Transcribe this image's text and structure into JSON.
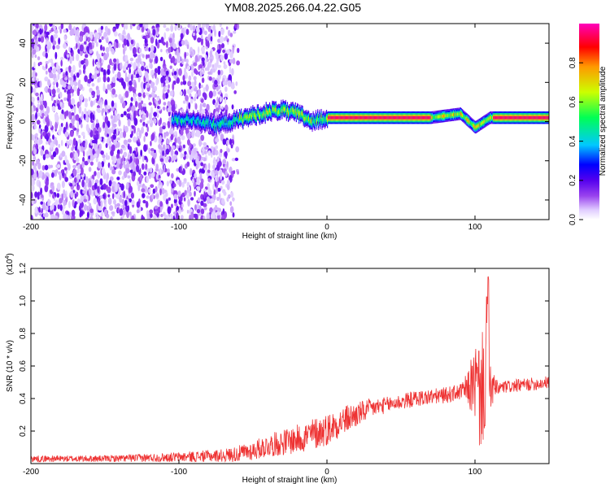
{
  "figure_title": "YM08.2025.266.04.22.G05",
  "chart_data": [
    {
      "type": "heatmap",
      "title": "YM08.2025.266.04.22.G05",
      "xlabel": "Height of straight line (km)",
      "ylabel": "Frequency (Hz)",
      "xlim": [
        -200,
        150
      ],
      "ylim": [
        -50,
        50
      ],
      "xticks": [
        -200,
        -100,
        0,
        100
      ],
      "xtick_labels": [
        "-200",
        "-100",
        "0",
        "100"
      ],
      "yticks": [
        -40,
        -20,
        0,
        20,
        40
      ],
      "ytick_labels": [
        "-40",
        "-20",
        "0",
        "20",
        "40"
      ],
      "colorbar": {
        "label": "Normalized spectral amplitude",
        "range": [
          0,
          1
        ],
        "ticks": [
          0.0,
          0.2,
          0.4,
          0.6,
          0.8
        ],
        "tick_labels": [
          "0.0",
          "0.2",
          "0.4",
          "0.6",
          "0.8"
        ],
        "colormap": [
          "#ffffff",
          "#d9c2ff",
          "#7a00e6",
          "#0000ff",
          "#00c8ff",
          "#00ff66",
          "#ccff00",
          "#ff9900",
          "#ff0000",
          "#ff00cc"
        ]
      },
      "features": {
        "noise_region_x": [
          -200,
          -70
        ],
        "noise_peak_amplitude": 0.15,
        "ridge_frequency_hz": 2,
        "ridge_start_x": -105,
        "ridge_peak_amplitude": 0.95,
        "ridge_trace": [
          {
            "x": -105,
            "f": 1
          },
          {
            "x": -90,
            "f": 1
          },
          {
            "x": -75,
            "f": -2
          },
          {
            "x": -60,
            "f": 1
          },
          {
            "x": -45,
            "f": 4
          },
          {
            "x": -32,
            "f": 6
          },
          {
            "x": -20,
            "f": 4
          },
          {
            "x": -10,
            "f": 0
          },
          {
            "x": 0,
            "f": 2
          },
          {
            "x": 70,
            "f": 2
          },
          {
            "x": 90,
            "f": 4
          },
          {
            "x": 100,
            "f": -3
          },
          {
            "x": 110,
            "f": 2
          },
          {
            "x": 150,
            "f": 2
          }
        ]
      }
    },
    {
      "type": "line",
      "xlabel": "Height of straight line (km)",
      "ylabel": "SNR (10 * v/v)",
      "y_multiplier_label": "(x10",
      "y_multiplier_exp": "4",
      "y_multiplier_close": ")",
      "xlim": [
        -200,
        150
      ],
      "ylim": [
        0,
        1.2
      ],
      "xticks": [
        -200,
        -100,
        0,
        100
      ],
      "xtick_labels": [
        "-200",
        "-100",
        "0",
        "100"
      ],
      "yticks": [
        0.2,
        0.4,
        0.6,
        0.8,
        1.0,
        1.2
      ],
      "ytick_labels": [
        "0.2",
        "0.4",
        "0.6",
        "0.8",
        "1.0",
        "1.2"
      ],
      "color": "#ee3333",
      "series": [
        {
          "x": [
            -200,
            -150,
            -100,
            -70,
            -60,
            -50,
            -40,
            -30,
            -20,
            -10,
            0,
            10,
            20,
            30,
            40,
            50,
            60,
            70,
            80,
            90,
            95,
            100,
            103,
            106,
            108,
            110,
            115,
            120,
            130,
            140,
            150
          ],
          "y": [
            0.03,
            0.03,
            0.04,
            0.05,
            0.06,
            0.08,
            0.11,
            0.13,
            0.15,
            0.18,
            0.21,
            0.26,
            0.3,
            0.34,
            0.36,
            0.38,
            0.4,
            0.41,
            0.42,
            0.44,
            0.46,
            0.5,
            0.42,
            0.48,
            0.7,
            0.47,
            0.46,
            0.47,
            0.48,
            0.49,
            0.5
          ],
          "noise_amplitude": [
            0.02,
            0.02,
            0.03,
            0.04,
            0.05,
            0.06,
            0.07,
            0.08,
            0.09,
            0.1,
            0.1,
            0.09,
            0.08,
            0.06,
            0.05,
            0.05,
            0.05,
            0.05,
            0.05,
            0.05,
            0.1,
            0.25,
            0.35,
            0.35,
            0.5,
            0.15,
            0.05,
            0.04,
            0.04,
            0.04,
            0.04
          ]
        }
      ]
    }
  ]
}
